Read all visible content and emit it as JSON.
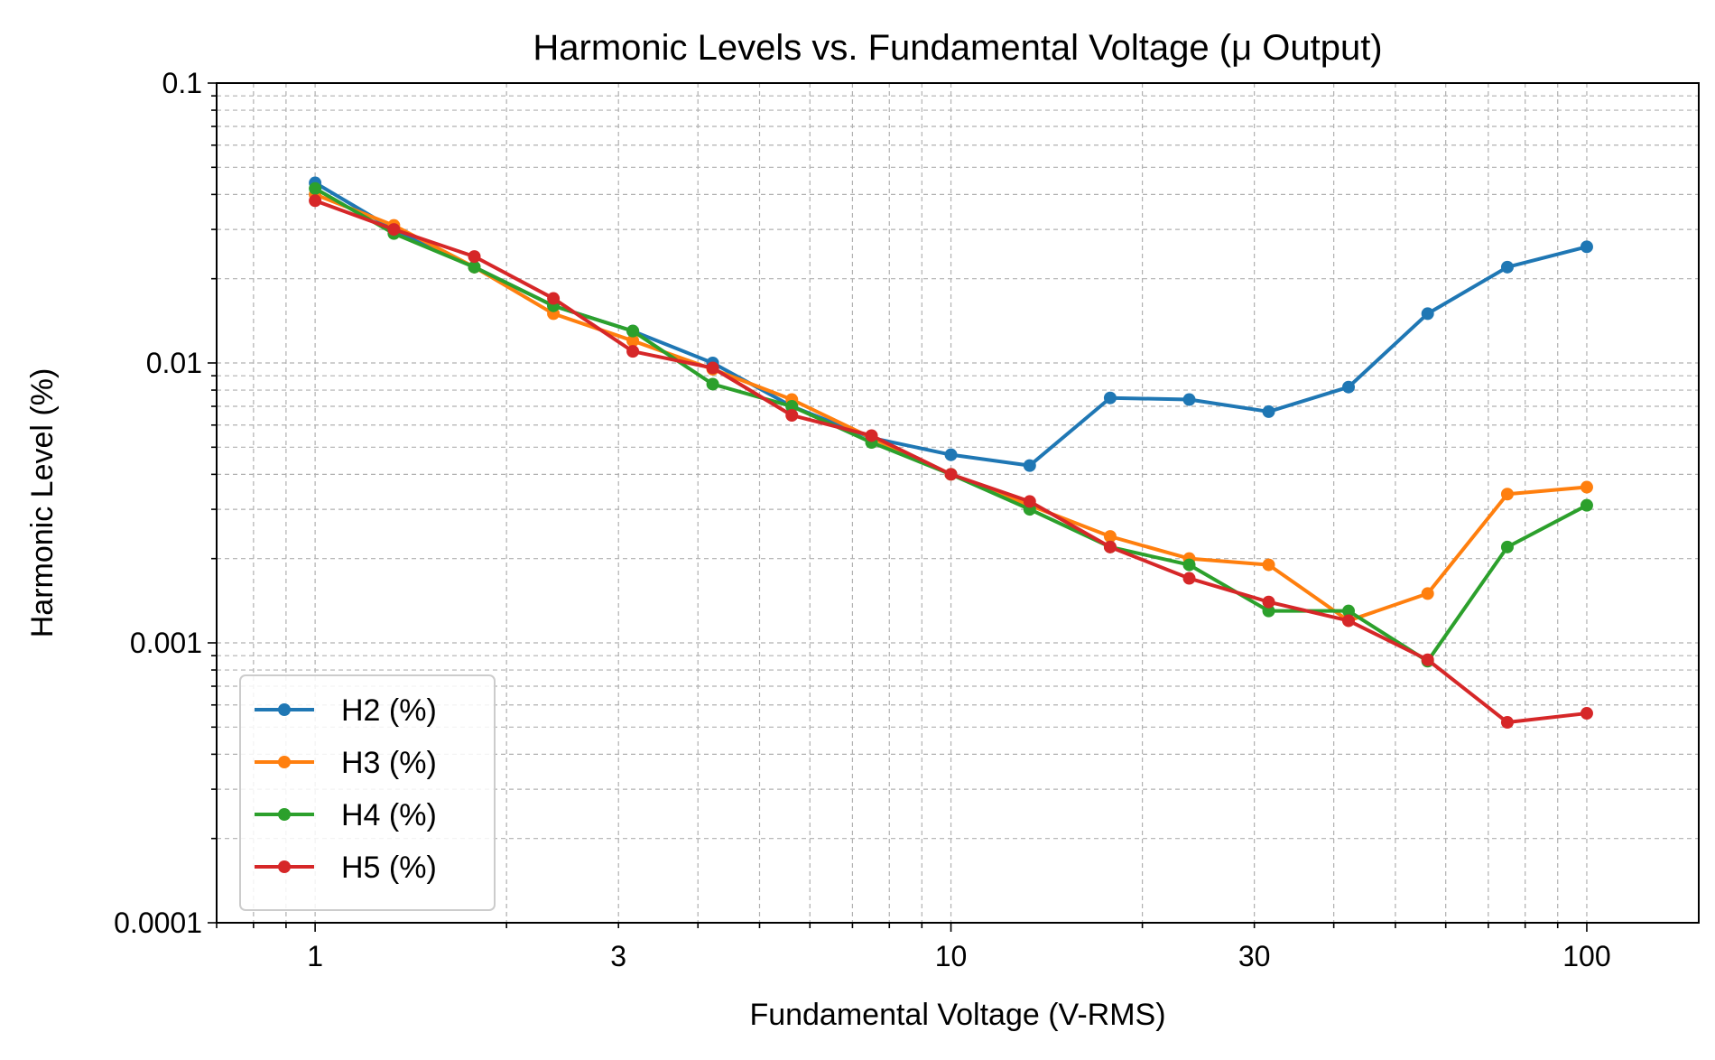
{
  "chart_data": {
    "type": "line",
    "title": "Harmonic Levels vs. Fundamental Voltage (μ Output)",
    "xlabel": "Fundamental Voltage (V-RMS)",
    "ylabel": "Harmonic Level (%)",
    "x_scale": "log",
    "y_scale": "log",
    "xlim": [
      0.7,
      150
    ],
    "ylim": [
      0.0001,
      0.1
    ],
    "x_ticks": [
      {
        "value": 1,
        "label": "1"
      },
      {
        "value": 3,
        "label": "3"
      },
      {
        "value": 10,
        "label": "10"
      },
      {
        "value": 30,
        "label": "30"
      },
      {
        "value": 100,
        "label": "100"
      }
    ],
    "y_ticks": [
      {
        "value": 0.0001,
        "label": "0.0001"
      },
      {
        "value": 0.001,
        "label": "0.001"
      },
      {
        "value": 0.01,
        "label": "0.01"
      },
      {
        "value": 0.1,
        "label": "0.1"
      }
    ],
    "grid": true,
    "grid_style": "dashed, major and minor",
    "legend_position": "lower-left",
    "x": [
      1.0,
      1.33,
      1.78,
      2.37,
      3.16,
      4.22,
      5.62,
      7.5,
      10.0,
      13.3,
      17.8,
      23.7,
      31.6,
      42.2,
      56.2,
      75.0,
      100.0
    ],
    "series": [
      {
        "name": "H2 (%)",
        "color": "#1f77b4",
        "values": [
          0.044,
          0.03,
          0.022,
          0.016,
          0.013,
          0.01,
          0.007,
          0.0054,
          0.0047,
          0.0043,
          0.0075,
          0.0074,
          0.0067,
          0.0082,
          0.015,
          0.022,
          0.026
        ]
      },
      {
        "name": "H3 (%)",
        "color": "#ff7f0e",
        "values": [
          0.04,
          0.031,
          0.022,
          0.015,
          0.012,
          0.0095,
          0.0074,
          0.0054,
          0.004,
          0.0031,
          0.0024,
          0.002,
          0.0019,
          0.0012,
          0.0015,
          0.0034,
          0.0036
        ]
      },
      {
        "name": "H4 (%)",
        "color": "#2ca02c",
        "values": [
          0.042,
          0.029,
          0.022,
          0.016,
          0.013,
          0.0084,
          0.007,
          0.0052,
          0.004,
          0.003,
          0.0022,
          0.0019,
          0.0013,
          0.0013,
          0.00086,
          0.0022,
          0.0031
        ]
      },
      {
        "name": "H5 (%)",
        "color": "#d62728",
        "values": [
          0.038,
          0.03,
          0.024,
          0.017,
          0.011,
          0.0096,
          0.0065,
          0.0055,
          0.004,
          0.0032,
          0.0022,
          0.0017,
          0.0014,
          0.0012,
          0.00087,
          0.00052,
          0.00056
        ]
      }
    ]
  }
}
